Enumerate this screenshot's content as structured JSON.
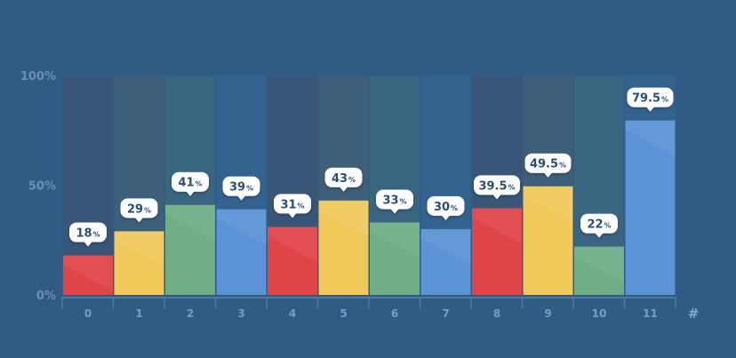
{
  "chart_data": {
    "type": "bar",
    "categories": [
      "0",
      "1",
      "2",
      "3",
      "4",
      "5",
      "6",
      "7",
      "8",
      "9",
      "10",
      "11"
    ],
    "values": [
      18,
      29,
      41,
      39,
      31,
      43,
      33,
      30,
      39.5,
      49.5,
      22,
      79.5
    ],
    "data_labels": [
      "18",
      "29",
      "41",
      "39",
      "31",
      "43",
      "33",
      "30",
      "39.5",
      "49.5",
      "22",
      "79.5"
    ],
    "data_label_unit": "%",
    "y_ticks": [
      "0%",
      "50%",
      "100%"
    ],
    "x_unit_label": "#",
    "ylim": [
      0,
      100
    ],
    "bar_colors": [
      "#e0454a",
      "#f1c85a",
      "#6fae87",
      "#5b93d6",
      "#e0454a",
      "#f1c85a",
      "#6fae87",
      "#5b93d6",
      "#e0454a",
      "#f1c85a",
      "#6fae87",
      "#5b93d6"
    ],
    "track_colors": [
      "#3b5676",
      "#3f6078",
      "#3b6780",
      "#356491",
      "#3b5676",
      "#3f6078",
      "#3b6780",
      "#356491",
      "#3b5676",
      "#3f6078",
      "#3b6780",
      "#356491"
    ],
    "grid": false,
    "legend": "none"
  }
}
